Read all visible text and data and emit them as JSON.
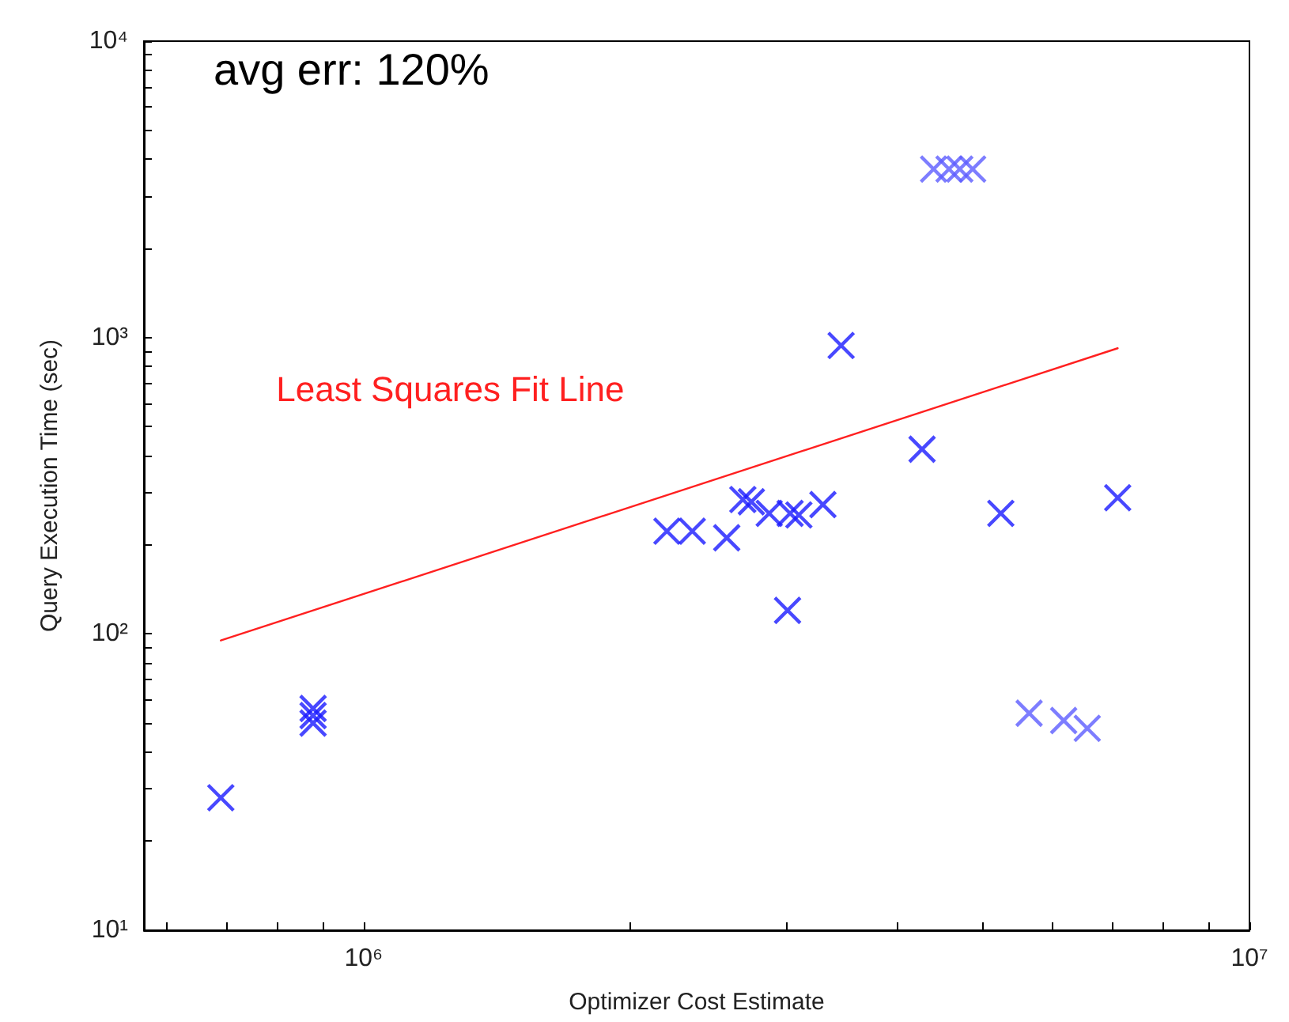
{
  "chart_data": {
    "type": "scatter",
    "xlabel": "Optimizer Cost Estimate",
    "ylabel": "Query Execution Time (sec)",
    "annotations": [
      "avg err: 120%"
    ],
    "log": "xy",
    "grid": false,
    "legend": false,
    "marker": "cross",
    "xlim": [
      565000,
      10000000
    ],
    "xticks": [
      {
        "value": 600000,
        "label": null
      },
      {
        "value": 700000,
        "label": null
      },
      {
        "value": 800000,
        "label": null
      },
      {
        "value": 900000,
        "label": null
      },
      {
        "value": 1000000,
        "label": "10⁶"
      },
      {
        "value": 2000000,
        "label": null
      },
      {
        "value": 3000000,
        "label": null
      },
      {
        "value": 4000000,
        "label": null
      },
      {
        "value": 5000000,
        "label": null
      },
      {
        "value": 6000000,
        "label": null
      },
      {
        "value": 7000000,
        "label": null
      },
      {
        "value": 8000000,
        "label": null
      },
      {
        "value": 9000000,
        "label": null
      },
      {
        "value": 10000000,
        "label": "10⁷"
      }
    ],
    "ylim": [
      10,
      10000
    ],
    "yticks": [
      {
        "value": 10,
        "label": "10¹"
      },
      {
        "value": 20,
        "label": null
      },
      {
        "value": 30,
        "label": null
      },
      {
        "value": 40,
        "label": null
      },
      {
        "value": 50,
        "label": null
      },
      {
        "value": 60,
        "label": null
      },
      {
        "value": 70,
        "label": null
      },
      {
        "value": 80,
        "label": null
      },
      {
        "value": 90,
        "label": null
      },
      {
        "value": 100,
        "label": "10²"
      },
      {
        "value": 200,
        "label": null
      },
      {
        "value": 300,
        "label": null
      },
      {
        "value": 400,
        "label": null
      },
      {
        "value": 500,
        "label": null
      },
      {
        "value": 600,
        "label": null
      },
      {
        "value": 700,
        "label": null
      },
      {
        "value": 800,
        "label": null
      },
      {
        "value": 900,
        "label": null
      },
      {
        "value": 1000,
        "label": "10³"
      },
      {
        "value": 2000,
        "label": null
      },
      {
        "value": 3000,
        "label": null
      },
      {
        "value": 4000,
        "label": null
      },
      {
        "value": 5000,
        "label": null
      },
      {
        "value": 6000,
        "label": null
      },
      {
        "value": 7000,
        "label": null
      },
      {
        "value": 8000,
        "label": null
      },
      {
        "value": 9000,
        "label": null
      },
      {
        "value": 10000,
        "label": "10⁴"
      }
    ],
    "series": [
      {
        "color": "#1a1aff",
        "x": [
          690000,
          877000,
          877000,
          877000,
          2200000,
          2350000,
          2570000,
          2680000,
          2740000,
          2870000,
          3030000,
          3100000,
          3300000,
          3010000,
          3460000,
          4270000,
          5240000,
          7100000
        ],
        "values": [
          28,
          56,
          53,
          50,
          222,
          222,
          211,
          284,
          279,
          255,
          255,
          252,
          273,
          120,
          940,
          420,
          255,
          288
        ]
      },
      {
        "color": "#5c5cff",
        "x": [
          4400000,
          4580000,
          4710000,
          4870000,
          5640000,
          6170000,
          6560000
        ],
        "values": [
          3700,
          3700,
          3700,
          3700,
          54,
          51,
          48
        ]
      },
      {
        "type": "line",
        "name": "Least Squares Fit Line",
        "color": "#ff2020",
        "marker": "none",
        "x": [
          690000,
          7100000
        ],
        "values": [
          95,
          920
        ]
      }
    ]
  }
}
